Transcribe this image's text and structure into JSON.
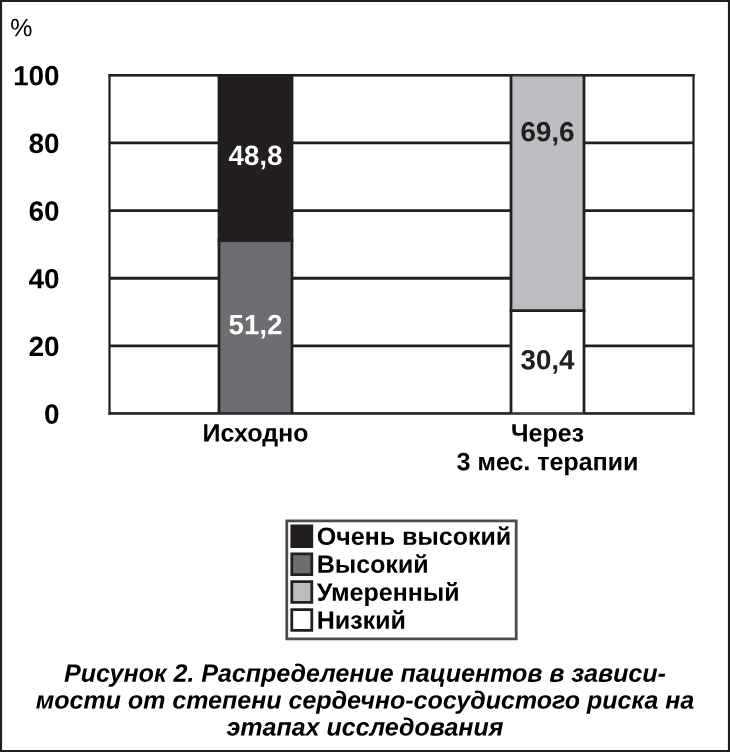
{
  "chart_data": {
    "type": "bar",
    "stacked": true,
    "title": "Рисунок 2. Распределение пациентов в зависи-\nмости от степени сердечно-сосудистого риска на\nэтапах исследования",
    "ylabel": "%",
    "categories": [
      "Исходно",
      "Через\n3 мес. терапии"
    ],
    "series": [
      {
        "name": "Низкий",
        "color": "#ffffff",
        "values": [
          null,
          30.4
        ],
        "value_labels": [
          null,
          "30,4"
        ]
      },
      {
        "name": "Умеренный",
        "color": "#bcbdc0",
        "values": [
          null,
          69.6
        ],
        "value_labels": [
          null,
          "69,6"
        ]
      },
      {
        "name": "Высокий",
        "color": "#6d6e71",
        "values": [
          51.2,
          null
        ],
        "value_labels": [
          "51,2",
          null
        ]
      },
      {
        "name": "Очень высокий",
        "color": "#231f20",
        "values": [
          48.8,
          null
        ],
        "value_labels": [
          "48,8",
          null
        ]
      }
    ],
    "ylim": [
      0,
      100
    ],
    "yticks": [
      0,
      20,
      40,
      60,
      80,
      100
    ],
    "grid": "y",
    "legend": "bottom"
  }
}
